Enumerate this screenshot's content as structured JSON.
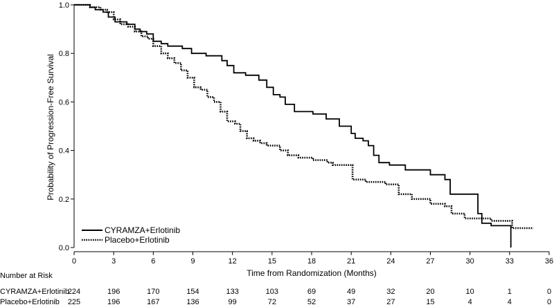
{
  "chart_data": {
    "type": "line",
    "xlabel": "Time from Randomization (Months)",
    "ylabel": "Probability of Progression-Free Survival",
    "xlim": [
      0,
      36
    ],
    "ylim": [
      0,
      1.0
    ],
    "x_ticks": [
      "0",
      "3",
      "6",
      "9",
      "12",
      "15",
      "18",
      "21",
      "24",
      "27",
      "30",
      "33",
      "36"
    ],
    "y_ticks": [
      "0.0",
      "0.2",
      "0.4",
      "0.6",
      "0.8",
      "1.0"
    ],
    "grid": false,
    "legend_position": "bottom-left",
    "series": [
      {
        "name": "CYRAMZA+Erlotinib",
        "style": "solid",
        "color": "#000000",
        "x": [
          0,
          1.2,
          1.6,
          2.2,
          2.6,
          3.1,
          4.0,
          4.6,
          5.0,
          5.5,
          6.0,
          6.6,
          7.1,
          8.2,
          8.9,
          10.0,
          11.2,
          11.6,
          12.1,
          13.0,
          14.0,
          14.6,
          15.1,
          15.6,
          16.0,
          16.7,
          18.1,
          19.1,
          20.1,
          21.0,
          21.3,
          21.9,
          22.3,
          22.7,
          23.1,
          23.9,
          25.1,
          27.0,
          28.1,
          28.5,
          30.6,
          30.9,
          31.6,
          33.1
        ],
        "y": [
          1.0,
          0.99,
          0.98,
          0.97,
          0.95,
          0.93,
          0.92,
          0.9,
          0.89,
          0.88,
          0.85,
          0.84,
          0.83,
          0.82,
          0.8,
          0.79,
          0.77,
          0.75,
          0.72,
          0.71,
          0.69,
          0.66,
          0.63,
          0.62,
          0.59,
          0.56,
          0.55,
          0.53,
          0.5,
          0.47,
          0.45,
          0.44,
          0.42,
          0.38,
          0.35,
          0.34,
          0.32,
          0.3,
          0.28,
          0.22,
          0.14,
          0.1,
          0.09,
          0.0
        ]
      },
      {
        "name": "Placebo+Erlotinib",
        "style": "dotted",
        "color": "#000000",
        "x": [
          0,
          1.2,
          2.0,
          2.5,
          3.0,
          3.5,
          4.1,
          4.6,
          5.1,
          5.6,
          6.0,
          6.6,
          7.1,
          7.6,
          8.1,
          8.6,
          9.1,
          9.6,
          10.1,
          10.6,
          11.1,
          11.6,
          12.2,
          12.6,
          13.1,
          13.6,
          14.1,
          14.6,
          15.6,
          16.2,
          17.0,
          18.1,
          19.2,
          19.6,
          21.1,
          22.1,
          23.6,
          24.6,
          25.6,
          27.0,
          28.1,
          28.6,
          29.6,
          31.6,
          33.2,
          34.8
        ],
        "y": [
          1.0,
          0.99,
          0.98,
          0.97,
          0.94,
          0.92,
          0.91,
          0.89,
          0.87,
          0.86,
          0.83,
          0.8,
          0.78,
          0.76,
          0.73,
          0.7,
          0.66,
          0.65,
          0.62,
          0.6,
          0.56,
          0.52,
          0.51,
          0.48,
          0.45,
          0.44,
          0.43,
          0.42,
          0.4,
          0.38,
          0.37,
          0.36,
          0.35,
          0.34,
          0.28,
          0.27,
          0.26,
          0.22,
          0.2,
          0.18,
          0.17,
          0.14,
          0.12,
          0.11,
          0.08,
          0.08
        ]
      }
    ],
    "risk_table": {
      "title": "Number at Risk",
      "times": [
        0,
        3,
        6,
        9,
        12,
        15,
        18,
        21,
        24,
        27,
        30,
        33,
        36
      ],
      "rows": [
        {
          "label": "CYRAMZA+Erlotinib",
          "values": [
            "224",
            "196",
            "170",
            "154",
            "133",
            "103",
            "69",
            "49",
            "32",
            "20",
            "10",
            "1",
            "0"
          ]
        },
        {
          "label": "Placebo+Erlotinib",
          "values": [
            "225",
            "196",
            "167",
            "136",
            "99",
            "72",
            "52",
            "37",
            "27",
            "15",
            "4",
            "4",
            "0"
          ]
        }
      ]
    }
  }
}
